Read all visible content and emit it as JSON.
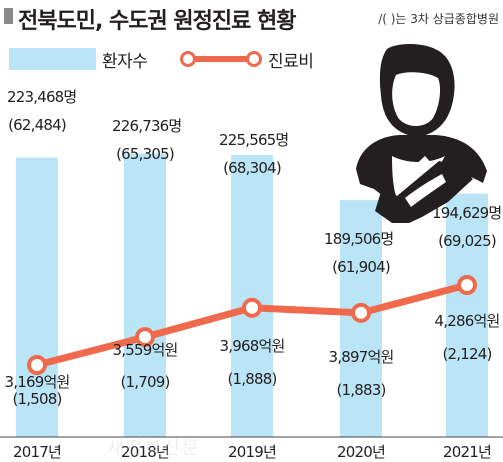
{
  "title": "전북도민, 수도권 원정진료 현황",
  "note": "/( )는 3차 상급종합병원",
  "legend": {
    "patients_label": "환자수",
    "cost_label": "진료비"
  },
  "colors": {
    "bar": "#b9e5f6",
    "line": "#ef6a4d",
    "point_fill": "#ffffff",
    "title_mark": "#8b8b8b",
    "icon": "#231f20"
  },
  "icon": "patient-with-arm-sling-icon",
  "watermark": "새전북신문",
  "chart_data": {
    "type": "bar",
    "categories": [
      "2017년",
      "2018년",
      "2019년",
      "2020년",
      "2021년"
    ],
    "series": [
      {
        "name": "환자수",
        "type": "bar",
        "values": [
          223468,
          226736,
          225565,
          189506,
          194629
        ],
        "value_labels": [
          "223,468명",
          "226,736명",
          "225,565명",
          "189,506명",
          "194,629명"
        ],
        "sub_values": [
          62484,
          65305,
          68304,
          61904,
          69025
        ],
        "sub_labels": [
          "(62,484)",
          "(65,305)",
          "(68,304)",
          "(61,904)",
          "(69,025)"
        ]
      },
      {
        "name": "진료비",
        "type": "line",
        "values": [
          3169,
          3559,
          3968,
          3897,
          4286
        ],
        "value_labels": [
          "3,169억원",
          "3,559억원",
          "3,968억원",
          "3,897억원",
          "4,286억원"
        ],
        "sub_values": [
          1508,
          1709,
          1888,
          1883,
          2124
        ],
        "sub_labels": [
          "(1,508)",
          "(1,709)",
          "(1,888)",
          "(1,883)",
          "(2,124)"
        ]
      }
    ],
    "bar_axis_min": 0,
    "bar_axis_max": 320000,
    "line_axis_min": 2400,
    "line_axis_max": 5700,
    "grid": false,
    "legend_position": "top-left"
  }
}
